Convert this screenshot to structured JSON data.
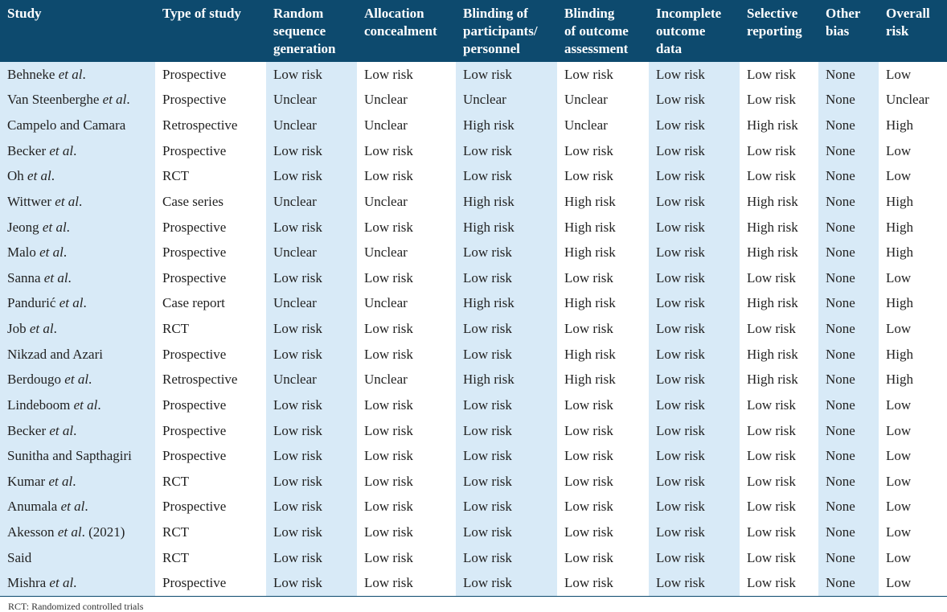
{
  "table": {
    "headers": [
      "Study",
      "Type of study",
      "Random\nsequence\ngeneration",
      "Allocation\nconcealment",
      "Blinding of\nparticipants/\npersonnel",
      "Blinding\nof outcome\nassessment",
      "Incomplete\noutcome\ndata",
      "Selective\nreporting",
      "Other\nbias",
      "Overall\nrisk"
    ],
    "rows": [
      {
        "study": "Behneke ",
        "etal": "et al",
        "suffix": ".",
        "cells": [
          "Prospective",
          "Low risk",
          "Low risk",
          "Low risk",
          "Low risk",
          "Low risk",
          "Low risk",
          "None",
          "Low"
        ]
      },
      {
        "study": "Van Steenberghe ",
        "etal": "et al",
        "suffix": ".",
        "cells": [
          "Prospective",
          "Unclear",
          "Unclear",
          "Unclear",
          "Unclear",
          "Low risk",
          "Low risk",
          "None",
          "Unclear"
        ]
      },
      {
        "study": "Campelo and Camara",
        "etal": "",
        "suffix": "",
        "cells": [
          "Retrospective",
          "Unclear",
          "Unclear",
          "High risk",
          "Unclear",
          "Low risk",
          "High risk",
          "None",
          "High"
        ]
      },
      {
        "study": "Becker ",
        "etal": "et al",
        "suffix": ".",
        "cells": [
          "Prospective",
          "Low risk",
          "Low risk",
          "Low risk",
          "Low risk",
          "Low risk",
          "Low risk",
          "None",
          "Low"
        ]
      },
      {
        "study": "Oh ",
        "etal": "et al",
        "suffix": ".",
        "cells": [
          "RCT",
          "Low risk",
          "Low risk",
          "Low risk",
          "Low risk",
          "Low risk",
          "Low risk",
          "None",
          "Low"
        ]
      },
      {
        "study": "Wittwer ",
        "etal": "et al",
        "suffix": ".",
        "cells": [
          "Case series",
          "Unclear",
          "Unclear",
          "High risk",
          "High risk",
          "Low risk",
          "High risk",
          "None",
          "High"
        ]
      },
      {
        "study": "Jeong ",
        "etal": "et al",
        "suffix": ".",
        "cells": [
          "Prospective",
          "Low risk",
          "Low risk",
          "High risk",
          "High risk",
          "Low risk",
          "High risk",
          "None",
          "High"
        ]
      },
      {
        "study": "Malo ",
        "etal": "et al",
        "suffix": ".",
        "cells": [
          "Prospective",
          "Unclear",
          "Unclear",
          "Low risk",
          "High risk",
          "Low risk",
          "High risk",
          "None",
          "High"
        ]
      },
      {
        "study": "Sanna ",
        "etal": "et al",
        "suffix": ".",
        "cells": [
          "Prospective",
          "Low risk",
          "Low risk",
          "Low risk",
          "Low risk",
          "Low risk",
          "Low risk",
          "None",
          "Low"
        ]
      },
      {
        "study": "Pandurić ",
        "etal": "et al",
        "suffix": ".",
        "cells": [
          "Case report",
          "Unclear",
          "Unclear",
          "High risk",
          "High risk",
          "Low risk",
          "High risk",
          "None",
          "High"
        ]
      },
      {
        "study": "Job ",
        "etal": "et al",
        "suffix": ".",
        "cells": [
          "RCT",
          "Low risk",
          "Low risk",
          "Low risk",
          "Low risk",
          "Low risk",
          "Low risk",
          "None",
          "Low"
        ]
      },
      {
        "study": "Nikzad and Azari",
        "etal": "",
        "suffix": "",
        "cells": [
          "Prospective",
          "Low risk",
          "Low risk",
          "Low risk",
          "High risk",
          "Low risk",
          "High risk",
          "None",
          "High"
        ]
      },
      {
        "study": "Berdougo ",
        "etal": "et al",
        "suffix": ".",
        "cells": [
          "Retrospective",
          "Unclear",
          "Unclear",
          "High risk",
          "High risk",
          "Low risk",
          "High risk",
          "None",
          "High"
        ]
      },
      {
        "study": "Lindeboom ",
        "etal": "et al",
        "suffix": ".",
        "cells": [
          "Prospective",
          "Low risk",
          "Low risk",
          "Low risk",
          "Low risk",
          "Low risk",
          "Low risk",
          "None",
          "Low"
        ]
      },
      {
        "study": "Becker ",
        "etal": "et al",
        "suffix": ".",
        "cells": [
          "Prospective",
          "Low risk",
          "Low risk",
          "Low risk",
          "Low risk",
          "Low risk",
          "Low risk",
          "None",
          "Low"
        ]
      },
      {
        "study": "Sunitha and Sapthagiri",
        "etal": "",
        "suffix": "",
        "cells": [
          "Prospective",
          "Low risk",
          "Low risk",
          "Low risk",
          "Low risk",
          "Low risk",
          "Low risk",
          "None",
          "Low"
        ]
      },
      {
        "study": "Kumar ",
        "etal": "et al",
        "suffix": ".",
        "cells": [
          "RCT",
          "Low risk",
          "Low risk",
          "Low risk",
          "Low risk",
          "Low risk",
          "Low risk",
          "None",
          "Low"
        ]
      },
      {
        "study": "Anumala ",
        "etal": "et al",
        "suffix": ".",
        "cells": [
          "Prospective",
          "Low risk",
          "Low risk",
          "Low risk",
          "Low risk",
          "Low risk",
          "Low risk",
          "None",
          "Low"
        ]
      },
      {
        "study": "Akesson ",
        "etal": "et al",
        "suffix": ". (2021)",
        "cells": [
          "RCT",
          "Low risk",
          "Low risk",
          "Low risk",
          "Low risk",
          "Low risk",
          "Low risk",
          "None",
          "Low"
        ]
      },
      {
        "study": "Said",
        "etal": "",
        "suffix": "",
        "cells": [
          "RCT",
          "Low risk",
          "Low risk",
          "Low risk",
          "Low risk",
          "Low risk",
          "Low risk",
          "None",
          "Low"
        ]
      },
      {
        "study": "Mishra ",
        "etal": "et al",
        "suffix": ".",
        "cells": [
          "Prospective",
          "Low risk",
          "Low risk",
          "Low risk",
          "Low risk",
          "Low risk",
          "Low risk",
          "None",
          "Low"
        ]
      }
    ]
  },
  "footnote": "RCT: Randomized controlled trials"
}
